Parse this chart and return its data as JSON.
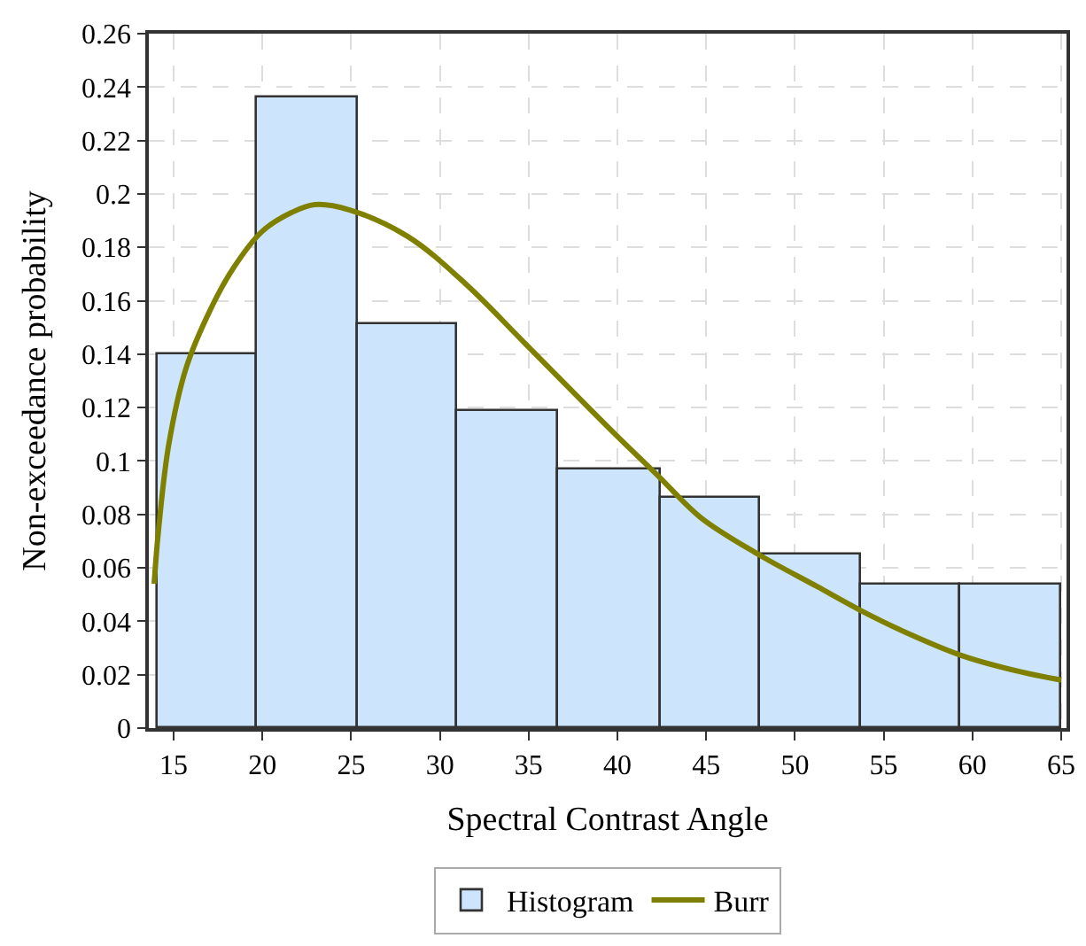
{
  "chart_data": {
    "type": "histogram",
    "xlabel": "Spectral Contrast Angle",
    "ylabel": "Non-exceedance probability",
    "bins": [
      14.1,
      19.7,
      25.4,
      31.0,
      36.7,
      42.4,
      48.0,
      53.7,
      59.3,
      65.0
    ],
    "series": [
      {
        "name": "Histogram",
        "color": "#cce5fc",
        "values": [
          0.14,
          0.236,
          0.151,
          0.119,
          0.097,
          0.086,
          0.065,
          0.054,
          0.054
        ]
      },
      {
        "name": "Burr",
        "type": "line",
        "color": "#808000",
        "x": [
          13.9,
          14.13,
          14.72,
          15.71,
          17.02,
          18.34,
          19.99,
          21.63,
          22.95,
          24.92,
          28.2,
          31.5,
          34.8,
          39.73,
          42.36,
          44.66,
          47.95,
          51.25,
          53.72,
          56.19,
          59.47,
          62.76,
          65.0
        ],
        "values": [
          0.054,
          0.073,
          0.106,
          0.135,
          0.156,
          0.172,
          0.186,
          0.193,
          0.196,
          0.194,
          0.184,
          0.166,
          0.144,
          0.111,
          0.094,
          0.079,
          0.065,
          0.053,
          0.044,
          0.036,
          0.027,
          0.021,
          0.018
        ]
      }
    ],
    "xlim": [
      13.6,
      65.3
    ],
    "xticks": [
      15,
      20,
      25,
      30,
      35,
      40,
      45,
      50,
      55,
      60,
      65
    ],
    "ylim": [
      0,
      0.26
    ],
    "yticks": [
      0,
      0.02,
      0.04,
      0.06,
      0.08,
      {
        "value": 0.1,
        "label": "0.1"
      },
      0.12,
      0.14,
      0.16,
      0.18,
      {
        "value": 0.2,
        "label": "0.2"
      },
      0.22,
      0.24,
      0.26
    ],
    "grid": true,
    "legend": "bottom",
    "marker": "none",
    "line_style": "solid"
  }
}
